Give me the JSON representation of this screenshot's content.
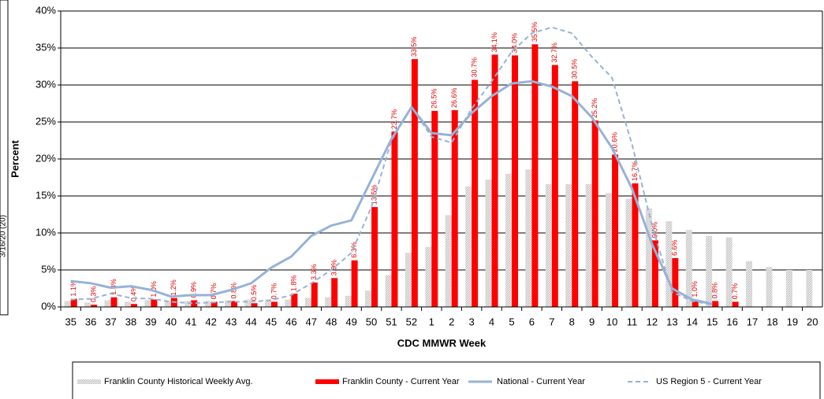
{
  "chart_data": {
    "type": "bar",
    "annotation": "3/16/20 (20)",
    "y_label": "Percent",
    "x_label": "CDC MMWR Week",
    "categories": [
      "35",
      "36",
      "37",
      "38",
      "39",
      "40",
      "41",
      "42",
      "43",
      "44",
      "45",
      "46",
      "47",
      "48",
      "49",
      "50",
      "51",
      "52",
      "1",
      "2",
      "3",
      "4",
      "5",
      "6",
      "7",
      "8",
      "9",
      "10",
      "11",
      "12",
      "13",
      "14",
      "15",
      "16",
      "17",
      "18",
      "19",
      "20"
    ],
    "ylim": [
      0,
      40
    ],
    "yticks": [
      {
        "value": 0,
        "label": "0%"
      },
      {
        "value": 5,
        "label": "5%"
      },
      {
        "value": 10,
        "label": "10%"
      },
      {
        "value": 15,
        "label": "15%"
      },
      {
        "value": 20,
        "label": "20%"
      },
      {
        "value": 25,
        "label": "25%"
      },
      {
        "value": 30,
        "label": "30%"
      },
      {
        "value": 35,
        "label": "35%"
      },
      {
        "value": 40,
        "label": "40%"
      }
    ],
    "grid": true,
    "legend": "bottom",
    "series": [
      {
        "name": "Franklin County Historical Weekly Avg.",
        "type": "bar",
        "color": "#bdbdbd",
        "values": [
          0.8,
          0.6,
          0.9,
          0.7,
          0.9,
          0.8,
          0.8,
          0.8,
          0.9,
          1.0,
          1.0,
          1.0,
          1.2,
          1.3,
          1.5,
          2.2,
          4.3,
          7.3,
          8.1,
          12.4,
          16.3,
          17.2,
          18.0,
          18.6,
          16.6,
          16.6,
          16.6,
          15.4,
          14.6,
          13.3,
          11.6,
          10.4,
          9.6,
          9.4,
          6.2,
          5.4,
          5.0,
          5.0
        ]
      },
      {
        "name": "Franklin County - Current Year",
        "type": "bar",
        "color": "#ff0000",
        "values": [
          1.1,
          0.3,
          1.3,
          0.4,
          1.0,
          1.2,
          0.9,
          0.7,
          0.8,
          0.5,
          0.7,
          1.8,
          3.3,
          3.9,
          6.3,
          13.5,
          23.7,
          33.5,
          26.5,
          26.6,
          30.7,
          34.1,
          34.0,
          35.5,
          32.7,
          30.5,
          25.2,
          20.6,
          16.7,
          9.0,
          6.6,
          1.0,
          0.8,
          0.7,
          null,
          null,
          null,
          null
        ],
        "value_labels": [
          "1.1%",
          "0.3%",
          "1.3%",
          "0.4%",
          "1.0%",
          "1.2%",
          "0.9%",
          "0.7%",
          "0.8%",
          "0.5%",
          "0.7%",
          "1.8%",
          "3.3%",
          "3.9%",
          "6.3%",
          "13.5%",
          "23.7%",
          "33.5%",
          "26.5%",
          "26.6%",
          "30.7%",
          "34.1%",
          "34.0%",
          "35.5%",
          "32.7%",
          "30.5%",
          "25.2%",
          "20.6%",
          "16.7%",
          "9.0%",
          "6.6%",
          "1.0%",
          "0.8%",
          "0.7%",
          null,
          null,
          null,
          null
        ]
      },
      {
        "name": "National - Current Year",
        "type": "line",
        "color": "#95b3d7",
        "values": [
          3.5,
          3.2,
          2.6,
          2.8,
          2.3,
          1.4,
          1.6,
          1.6,
          2.3,
          3.2,
          5.3,
          6.8,
          9.6,
          11.0,
          11.7,
          17.2,
          22.7,
          27.0,
          23.5,
          23.2,
          26.2,
          28.5,
          30.2,
          30.5,
          29.8,
          28.5,
          25.6,
          21.5,
          16.0,
          8.5,
          2.5,
          1.0,
          0.4,
          null,
          null,
          null,
          null,
          null
        ]
      },
      {
        "name": "US Region 5 - Current Year",
        "type": "line",
        "dashed": true,
        "color": "#95b3d7",
        "values": [
          1.0,
          1.1,
          1.8,
          1.2,
          1.1,
          0.7,
          0.5,
          0.6,
          0.7,
          0.7,
          0.9,
          1.6,
          3.2,
          5.0,
          7.3,
          13.5,
          22.5,
          27.0,
          23.0,
          22.2,
          26.8,
          30.5,
          34.5,
          37.0,
          37.8,
          37.0,
          33.8,
          31.0,
          22.0,
          11.0,
          2.0,
          0.8,
          0.3,
          null,
          null,
          null,
          null,
          null
        ]
      }
    ]
  }
}
